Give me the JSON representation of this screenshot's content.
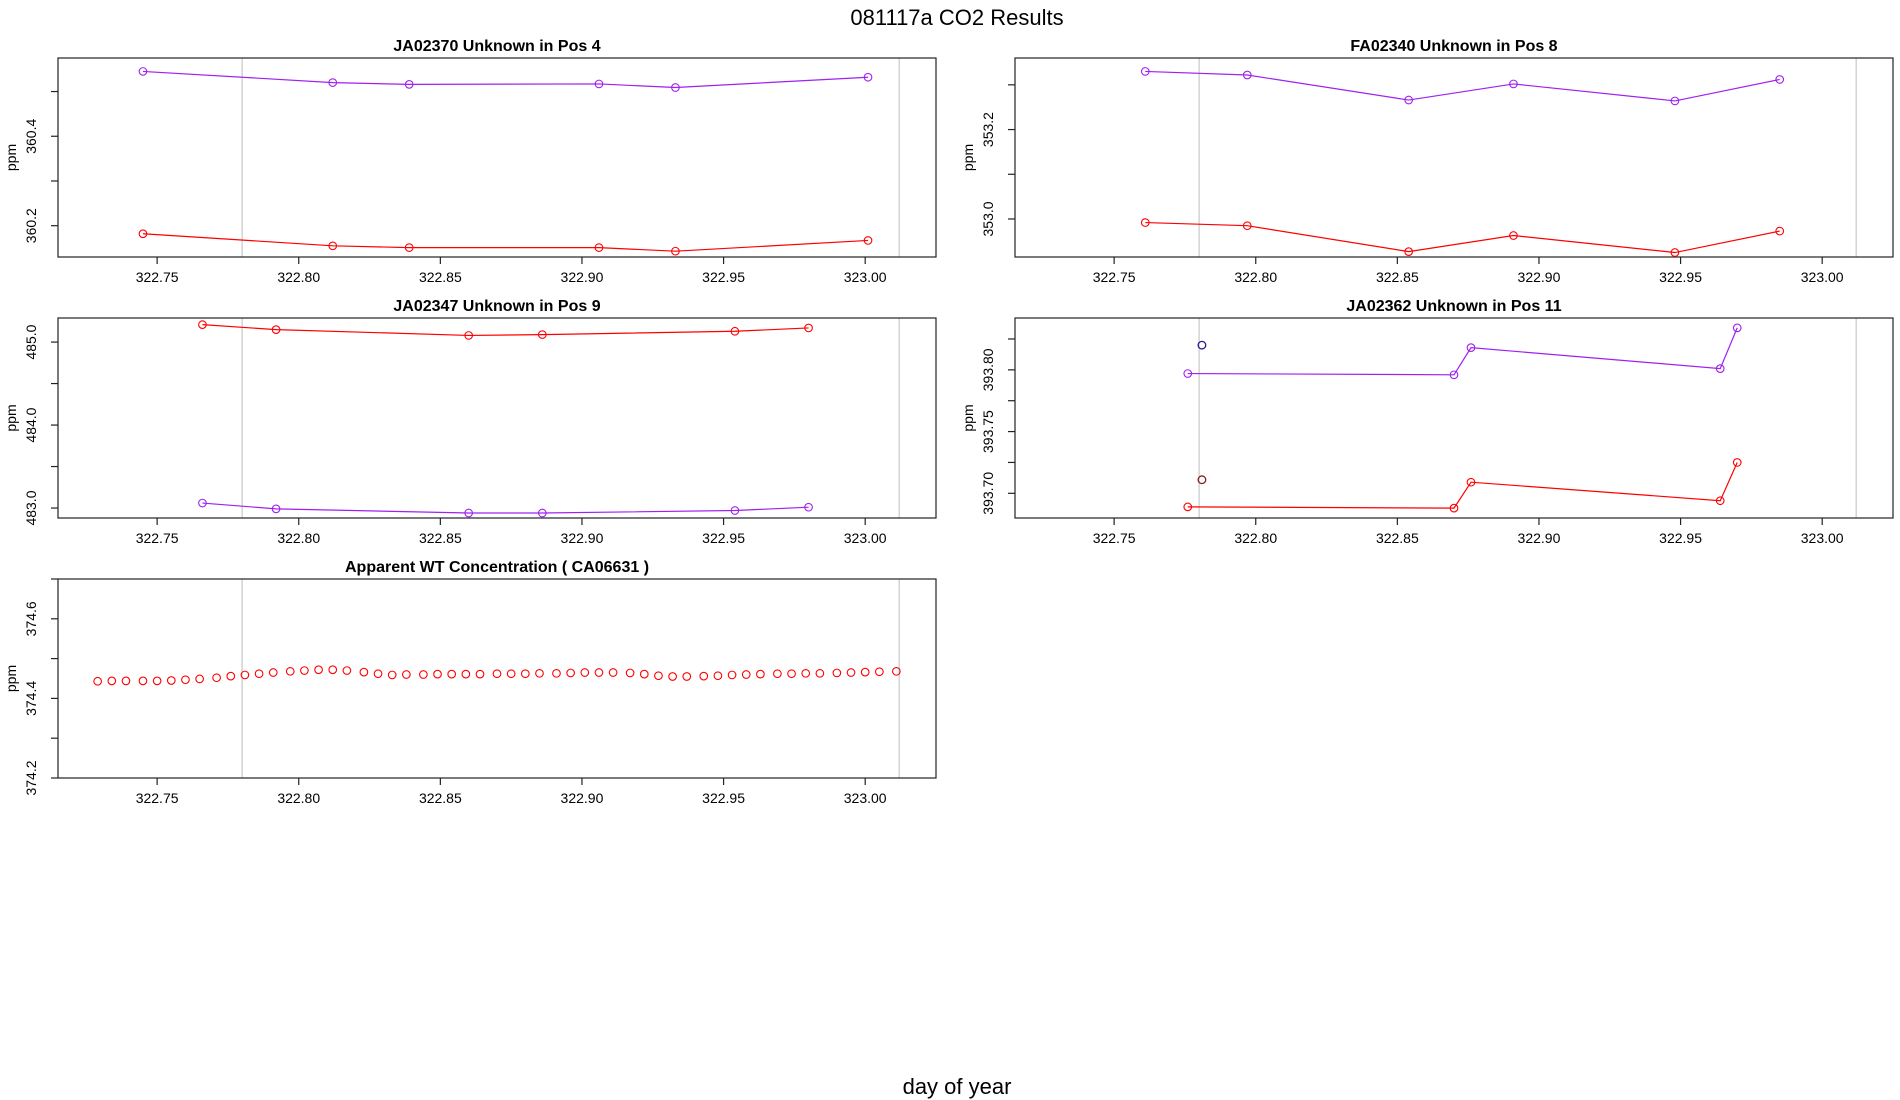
{
  "figure": {
    "title": "081117a  CO2 Results",
    "xlabel": "day of year"
  },
  "chart_data": [
    {
      "type": "line",
      "title": "JA02370    Unknown in Pos 4",
      "ylabel": "ppm",
      "xlim": [
        322.715,
        323.025
      ],
      "ylim": [
        360.13,
        360.575
      ],
      "xticks": [
        "322.75",
        "322.80",
        "322.85",
        "322.90",
        "322.95",
        "323.00"
      ],
      "yticks": [
        "360.2",
        "360.4"
      ],
      "vlines": [
        322.78,
        323.012
      ],
      "series": [
        {
          "color": "#a020f0",
          "x": [
            322.745,
            322.812,
            322.839,
            322.906,
            322.933,
            323.001
          ],
          "y": [
            360.545,
            360.52,
            360.516,
            360.517,
            360.509,
            360.532
          ]
        },
        {
          "color": "#ff0000",
          "x": [
            322.745,
            322.812,
            322.839,
            322.906,
            322.933,
            323.001
          ],
          "y": [
            360.182,
            360.155,
            360.151,
            360.151,
            360.143,
            360.167
          ]
        }
      ]
    },
    {
      "type": "line",
      "title": "FA02340    Unknown in Pos 8",
      "ylabel": "ppm",
      "xlim": [
        322.715,
        323.025
      ],
      "ylim": [
        352.915,
        353.36
      ],
      "xticks": [
        "322.75",
        "322.80",
        "322.85",
        "322.90",
        "322.95",
        "323.00"
      ],
      "yticks": [
        "353.0",
        "353.2"
      ],
      "vlines": [
        322.78,
        323.012
      ],
      "series": [
        {
          "color": "#a020f0",
          "x": [
            322.761,
            322.797,
            322.854,
            322.891,
            322.948,
            322.985
          ],
          "y": [
            353.33,
            353.322,
            353.266,
            353.302,
            353.264,
            353.312
          ]
        },
        {
          "color": "#ff0000",
          "x": [
            322.761,
            322.797,
            322.854,
            322.891,
            322.948,
            322.985
          ],
          "y": [
            352.992,
            352.985,
            352.927,
            352.963,
            352.925,
            352.973
          ]
        }
      ]
    },
    {
      "type": "line",
      "title": "JA02347    Unknown in Pos 9",
      "ylabel": "ppm",
      "xlim": [
        322.715,
        323.025
      ],
      "ylim": [
        482.88,
        485.29
      ],
      "xticks": [
        "322.75",
        "322.80",
        "322.85",
        "322.90",
        "322.95",
        "323.00"
      ],
      "yticks": [
        "483.0",
        "484.0",
        "485.0"
      ],
      "vlines": [
        322.78,
        323.012
      ],
      "series": [
        {
          "color": "#ff0000",
          "x": [
            322.766,
            322.792,
            322.86,
            322.886,
            322.954,
            322.98
          ],
          "y": [
            485.21,
            485.15,
            485.08,
            485.09,
            485.13,
            485.17
          ]
        },
        {
          "color": "#a020f0",
          "x": [
            322.766,
            322.792,
            322.86,
            322.886,
            322.954,
            322.98
          ],
          "y": [
            483.06,
            482.99,
            482.94,
            482.94,
            482.97,
            483.01
          ]
        }
      ]
    },
    {
      "type": "line",
      "title": "JA02362    Unknown in Pos 11",
      "ylabel": "ppm",
      "xlim": [
        322.715,
        323.025
      ],
      "ylim": [
        393.68,
        393.842
      ],
      "xticks": [
        "322.75",
        "322.80",
        "322.85",
        "322.90",
        "322.95",
        "323.00"
      ],
      "yticks": [
        "393.70",
        "393.75",
        "393.80"
      ],
      "vlines": [
        322.78,
        323.012
      ],
      "series": [
        {
          "color": "#a020f0",
          "x": [
            322.776,
            322.87,
            322.876,
            322.964,
            322.97
          ],
          "y": [
            393.797,
            393.796,
            393.818,
            393.801,
            393.834
          ]
        },
        {
          "color": "#ff0000",
          "x": [
            322.776,
            322.87,
            322.876,
            322.964,
            322.97
          ],
          "y": [
            393.689,
            393.688,
            393.709,
            393.694,
            393.725
          ]
        }
      ],
      "extra_points": [
        {
          "color": "#2a1a8a",
          "x": 322.781,
          "y": 393.82
        },
        {
          "color": "#8b1a1a",
          "x": 322.781,
          "y": 393.711
        }
      ]
    },
    {
      "type": "scatter",
      "title": "Apparent WT Concentration ( CA06631 )",
      "ylabel": "ppm",
      "xlim": [
        322.715,
        323.025
      ],
      "ylim": [
        374.2,
        374.7
      ],
      "xticks": [
        "322.75",
        "322.80",
        "322.85",
        "322.90",
        "322.95",
        "323.00"
      ],
      "yticks": [
        "374.2",
        "374.4",
        "374.6"
      ],
      "vlines": [
        322.78,
        323.012
      ],
      "series": [
        {
          "color": "#ff0000",
          "x": [
            322.729,
            322.734,
            322.739,
            322.745,
            322.75,
            322.755,
            322.76,
            322.765,
            322.771,
            322.776,
            322.781,
            322.786,
            322.791,
            322.797,
            322.802,
            322.807,
            322.812,
            322.817,
            322.823,
            322.828,
            322.833,
            322.838,
            322.844,
            322.849,
            322.854,
            322.859,
            322.864,
            322.87,
            322.875,
            322.88,
            322.885,
            322.891,
            322.896,
            322.901,
            322.906,
            322.911,
            322.917,
            322.922,
            322.927,
            322.932,
            322.937,
            322.943,
            322.948,
            322.953,
            322.958,
            322.963,
            322.969,
            322.974,
            322.979,
            322.984,
            322.99,
            322.995,
            323.0,
            323.005,
            323.011
          ],
          "y": [
            374.443,
            374.444,
            374.444,
            374.444,
            374.444,
            374.445,
            374.447,
            374.449,
            374.452,
            374.456,
            374.459,
            374.462,
            374.465,
            374.468,
            374.47,
            374.472,
            374.472,
            374.47,
            374.466,
            374.462,
            374.459,
            374.46,
            374.46,
            374.461,
            374.461,
            374.461,
            374.461,
            374.462,
            374.462,
            374.462,
            374.463,
            374.463,
            374.464,
            374.465,
            374.465,
            374.465,
            374.464,
            374.461,
            374.457,
            374.455,
            374.455,
            374.456,
            374.457,
            374.459,
            374.46,
            374.461,
            374.462,
            374.462,
            374.463,
            374.463,
            374.464,
            374.465,
            374.466,
            374.467,
            374.468
          ]
        }
      ]
    }
  ]
}
